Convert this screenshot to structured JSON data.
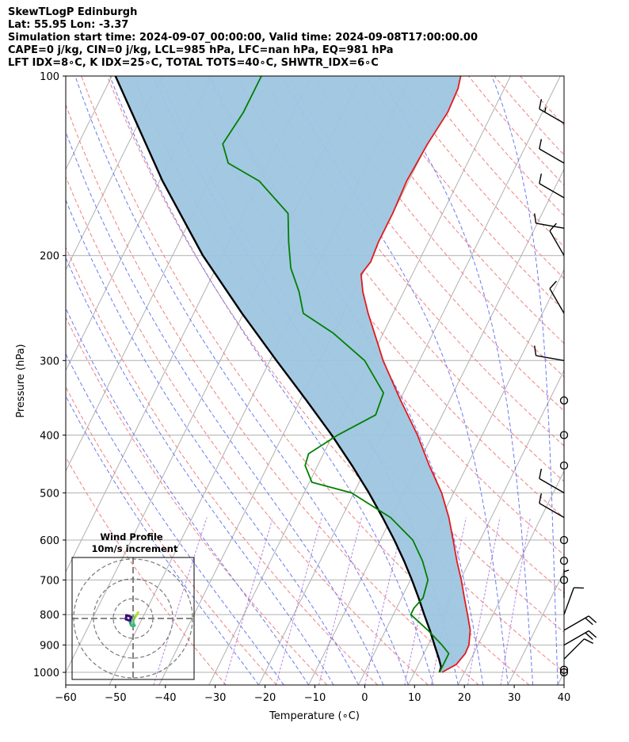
{
  "header": {
    "line1": "SkewTLogP Edinburgh",
    "line2": "Lat: 55.95   Lon: -3.37",
    "line3": "Simulation start time: 2024-09-07_00:00:00, Valid time: 2024-09-08T17:00:00.00",
    "line4": "CAPE=0 j/kg, CIN=0 j/kg, LCL=985 hPa, LFC=nan hPa, EQ=981 hPa",
    "line5": "LFT IDX=8∘C, K IDX=25∘C, TOTAL TOTS=40∘C, SHWTR_IDX=6∘C"
  },
  "colors": {
    "temperature": "#e31a1c",
    "dewpoint": "#008000",
    "parcel": "#000000",
    "shading": "#9ec5e0",
    "dry_adiabat": "#f08080",
    "moist_adiabat": "#6a7bf2",
    "mixing_ratio": "#9b59d0",
    "isotherm": "#b0b0b0"
  },
  "chart_data": {
    "type": "line",
    "xlabel": "Temperature (∘C)",
    "ylabel": "Pressure (hPa)",
    "xlim": [
      -60,
      40
    ],
    "ylim": [
      1050,
      100
    ],
    "y_scale": "log",
    "x_ticks": [
      -60,
      -50,
      -40,
      -30,
      -20,
      -10,
      0,
      10,
      20,
      30,
      40
    ],
    "y_ticks": [
      100,
      200,
      300,
      400,
      500,
      600,
      700,
      800,
      900,
      1000
    ],
    "grid": true,
    "series": [
      {
        "key": "temperature",
        "points": [
          [
            1000,
            15.5
          ],
          [
            970,
            17.6
          ],
          [
            930,
            18.3
          ],
          [
            900,
            18.2
          ],
          [
            850,
            17.0
          ],
          [
            800,
            14.9
          ],
          [
            750,
            12.6
          ],
          [
            700,
            10.2
          ],
          [
            650,
            7.4
          ],
          [
            600,
            4.6
          ],
          [
            550,
            1.5
          ],
          [
            500,
            -2.4
          ],
          [
            450,
            -7.6
          ],
          [
            400,
            -13.0
          ],
          [
            350,
            -19.8
          ],
          [
            300,
            -27.3
          ],
          [
            280,
            -30.2
          ],
          [
            250,
            -35.0
          ],
          [
            230,
            -38.2
          ],
          [
            215,
            -40.3
          ],
          [
            205,
            -39.6
          ],
          [
            190,
            -40.0
          ],
          [
            170,
            -40.0
          ],
          [
            150,
            -40.4
          ],
          [
            130,
            -39.9
          ],
          [
            115,
            -39.0
          ],
          [
            105,
            -39.3
          ],
          [
            100,
            -40.0
          ]
        ]
      },
      {
        "key": "dewpoint",
        "points": [
          [
            1000,
            15.0
          ],
          [
            960,
            15.0
          ],
          [
            930,
            15.0
          ],
          [
            900,
            12.8
          ],
          [
            850,
            8.5
          ],
          [
            800,
            3.5
          ],
          [
            780,
            3.5
          ],
          [
            750,
            4.3
          ],
          [
            700,
            3.5
          ],
          [
            650,
            0.5
          ],
          [
            600,
            -3.5
          ],
          [
            550,
            -10.2
          ],
          [
            500,
            -20.5
          ],
          [
            480,
            -29.5
          ],
          [
            450,
            -32.5
          ],
          [
            430,
            -33.0
          ],
          [
            400,
            -29.0
          ],
          [
            370,
            -23.4
          ],
          [
            340,
            -24.0
          ],
          [
            300,
            -31.0
          ],
          [
            270,
            -40.0
          ],
          [
            250,
            -48.0
          ],
          [
            230,
            -51.0
          ],
          [
            210,
            -55.0
          ],
          [
            190,
            -58.0
          ],
          [
            170,
            -61.0
          ],
          [
            150,
            -70.0
          ],
          [
            140,
            -78.0
          ],
          [
            130,
            -81.0
          ],
          [
            115,
            -80.0
          ],
          [
            100,
            -80.0
          ]
        ]
      },
      {
        "key": "parcel",
        "points": [
          [
            1000,
            15.0
          ],
          [
            980,
            14.8
          ],
          [
            950,
            13.6
          ],
          [
            900,
            11.3
          ],
          [
            850,
            8.9
          ],
          [
            800,
            6.2
          ],
          [
            750,
            3.4
          ],
          [
            700,
            0.3
          ],
          [
            650,
            -3.2
          ],
          [
            600,
            -7.2
          ],
          [
            550,
            -11.8
          ],
          [
            500,
            -17.0
          ],
          [
            450,
            -23.1
          ],
          [
            400,
            -30.2
          ],
          [
            350,
            -38.7
          ],
          [
            300,
            -48.7
          ],
          [
            250,
            -60.3
          ],
          [
            200,
            -73.9
          ],
          [
            150,
            -89.4
          ],
          [
            100,
            -109.3
          ]
        ]
      }
    ]
  },
  "wind_barbs": {
    "pressures_hpa": [
      1000,
      990,
      950,
      900,
      850,
      800,
      750,
      700,
      650,
      600,
      550,
      500,
      450,
      400,
      350,
      300,
      250,
      200,
      180,
      160,
      140,
      120
    ],
    "speeds_kt": [
      0,
      0,
      10,
      20,
      20,
      10,
      5,
      0,
      0,
      0,
      10,
      10,
      0,
      0,
      0,
      10,
      10,
      10,
      10,
      10,
      10,
      15
    ],
    "directions_deg": [
      0,
      0,
      45,
      60,
      60,
      20,
      0,
      0,
      0,
      0,
      300,
      300,
      0,
      0,
      0,
      280,
      330,
      330,
      280,
      300,
      300,
      300
    ]
  },
  "inset": {
    "title": "Wind Profile",
    "subtitle": "10m/s increment",
    "ring_count": 3,
    "hodograph": [
      [
        -2.0,
        -1.0
      ],
      [
        -3.6,
        -0.4
      ],
      [
        -3.4,
        1.6
      ],
      [
        -2.0,
        1.2
      ],
      [
        -1.0,
        0.8
      ],
      [
        -1.5,
        -2.0
      ],
      [
        -1.0,
        -3.5
      ],
      [
        0.0,
        -4.0
      ],
      [
        0.8,
        -3.6
      ],
      [
        0.0,
        -2.0
      ],
      [
        0.4,
        0.0
      ],
      [
        1.8,
        1.8
      ],
      [
        2.5,
        3.0
      ]
    ]
  }
}
